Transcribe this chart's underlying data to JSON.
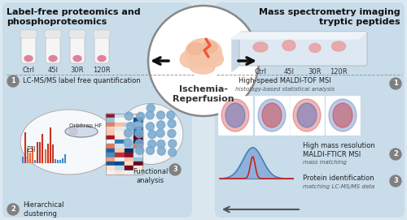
{
  "bg_color": "#dce8f0",
  "panel_color": "#c8dcea",
  "title_left": "Label-free proteomics and\nphosphoproteomics",
  "title_right": "Mass spectrometry imaging\ntryptic peptides",
  "center_title": "Ischemia-\nReperfusion",
  "sample_labels": [
    "Ctrl",
    "45I",
    "30R",
    "120R"
  ],
  "left_step1": "LC-MS/MS label free quantification",
  "left_step2": "Hierarchical\nclustering",
  "left_step3": "Functional\nanalysis",
  "right_step1": "High-speed MALDI-TOF MSI",
  "right_step1_sub": "histology-based statistical analysis",
  "right_step2": "High mass resolution\nMALDI-FTICR MSI",
  "right_step2_sub": "mass matching",
  "right_step3": "Protein identification",
  "right_step3_sub": "matching LC-MS/MS data",
  "orbitrap_label": "Orbitrap HF",
  "esi_label": "ESI"
}
